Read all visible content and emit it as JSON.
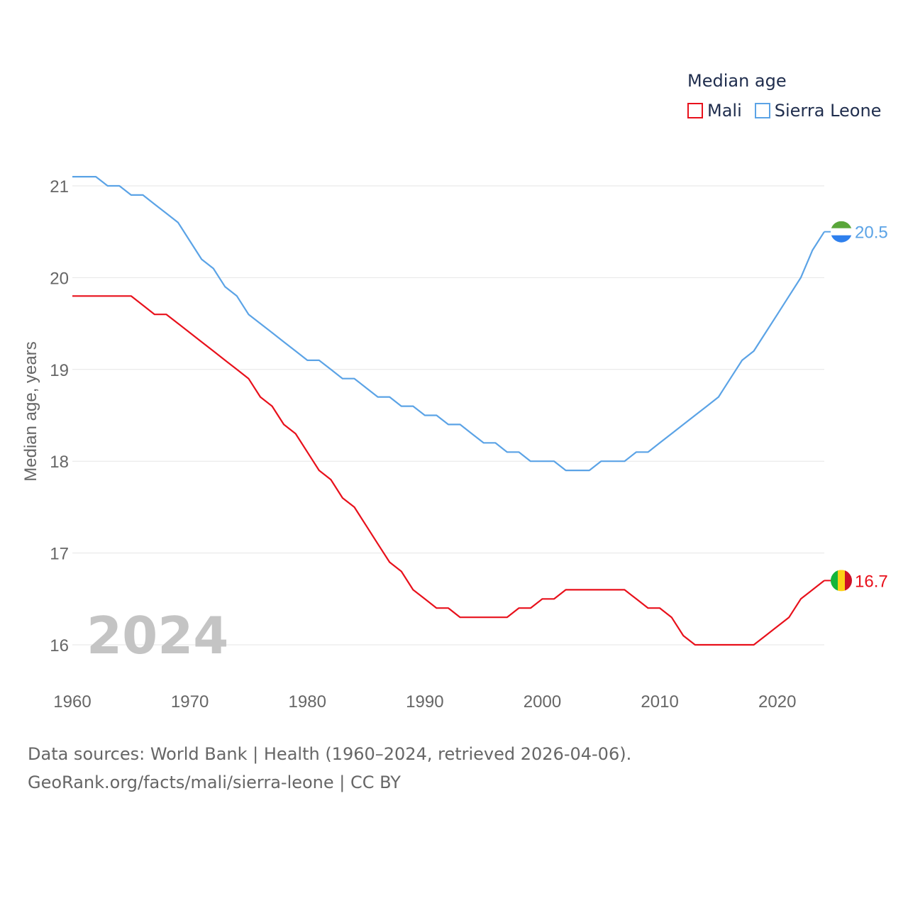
{
  "chart_data": {
    "type": "line",
    "year_label": "2024",
    "legend_title": "Median age",
    "ylabel": "Median age, years",
    "xlim": [
      1960,
      2024
    ],
    "ylim": [
      15.6,
      21.3
    ],
    "x_ticks": [
      1960,
      1970,
      1980,
      1990,
      2000,
      2010,
      2020
    ],
    "y_ticks": [
      16,
      17,
      18,
      19,
      20,
      21
    ],
    "x": [
      1960,
      1961,
      1962,
      1963,
      1964,
      1965,
      1966,
      1967,
      1968,
      1969,
      1970,
      1971,
      1972,
      1973,
      1974,
      1975,
      1976,
      1977,
      1978,
      1979,
      1980,
      1981,
      1982,
      1983,
      1984,
      1985,
      1986,
      1987,
      1988,
      1989,
      1990,
      1991,
      1992,
      1993,
      1994,
      1995,
      1996,
      1997,
      1998,
      1999,
      2000,
      2001,
      2002,
      2003,
      2004,
      2005,
      2006,
      2007,
      2008,
      2009,
      2010,
      2011,
      2012,
      2013,
      2014,
      2015,
      2016,
      2017,
      2018,
      2019,
      2020,
      2021,
      2022,
      2023,
      2024
    ],
    "series": [
      {
        "name": "Mali",
        "color": "#e8101b",
        "end_label": "16.7",
        "flag_colors": [
          "#14b53a",
          "#fcd116",
          "#ce1126"
        ],
        "values": [
          19.8,
          19.8,
          19.8,
          19.8,
          19.8,
          19.8,
          19.7,
          19.6,
          19.6,
          19.5,
          19.4,
          19.3,
          19.2,
          19.1,
          19.0,
          18.9,
          18.7,
          18.6,
          18.4,
          18.3,
          18.1,
          17.9,
          17.8,
          17.6,
          17.5,
          17.3,
          17.1,
          16.9,
          16.8,
          16.6,
          16.5,
          16.4,
          16.4,
          16.3,
          16.3,
          16.3,
          16.3,
          16.3,
          16.4,
          16.4,
          16.5,
          16.5,
          16.6,
          16.6,
          16.6,
          16.6,
          16.6,
          16.6,
          16.5,
          16.4,
          16.4,
          16.3,
          16.1,
          16.0,
          16.0,
          16.0,
          16.0,
          16.0,
          16.0,
          16.1,
          16.2,
          16.3,
          16.5,
          16.6,
          16.7
        ]
      },
      {
        "name": "Sierra Leone",
        "color": "#5ba3e6",
        "end_label": "20.5",
        "flag_colors": [
          "#5aa63a",
          "#ffffff",
          "#2f80ed"
        ],
        "values": [
          21.1,
          21.1,
          21.1,
          21.0,
          21.0,
          20.9,
          20.9,
          20.8,
          20.7,
          20.6,
          20.4,
          20.2,
          20.1,
          19.9,
          19.8,
          19.6,
          19.5,
          19.4,
          19.3,
          19.2,
          19.1,
          19.1,
          19.0,
          18.9,
          18.9,
          18.8,
          18.7,
          18.7,
          18.6,
          18.6,
          18.5,
          18.5,
          18.4,
          18.4,
          18.3,
          18.2,
          18.2,
          18.1,
          18.1,
          18.0,
          18.0,
          18.0,
          17.9,
          17.9,
          17.9,
          18.0,
          18.0,
          18.0,
          18.1,
          18.1,
          18.2,
          18.3,
          18.4,
          18.5,
          18.6,
          18.7,
          18.9,
          19.1,
          19.2,
          19.4,
          19.6,
          19.8,
          20.0,
          20.3,
          20.5
        ]
      }
    ]
  },
  "footer": {
    "line1": "Data sources: World Bank | Health (1960–2024, retrieved 2026-04-06).",
    "line2": "GeoRank.org/facts/mali/sierra-leone | CC BY"
  }
}
